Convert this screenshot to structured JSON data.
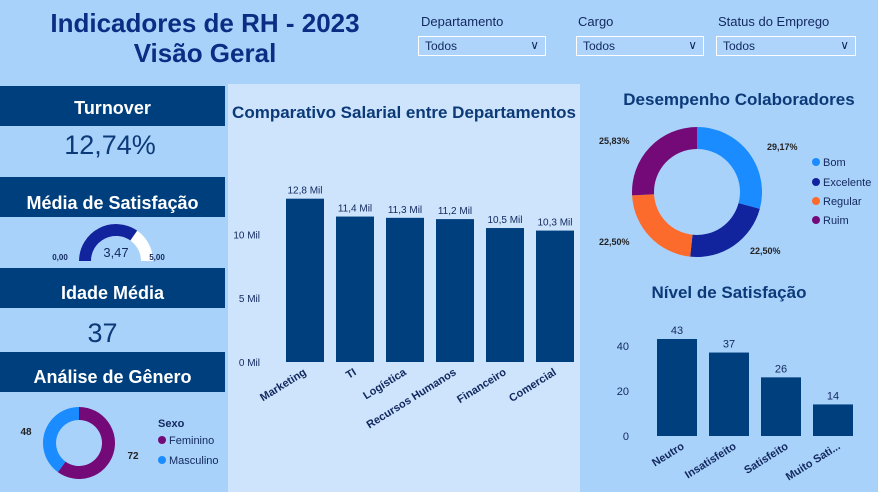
{
  "header": {
    "title_line1": "Indicadores de RH - 2023",
    "title_line2": "Visão Geral"
  },
  "filters": [
    {
      "label": "Departamento",
      "value": "Todos"
    },
    {
      "label": "Cargo",
      "value": "Todos"
    },
    {
      "label": "Status do Emprego",
      "value": "Todos"
    }
  ],
  "kpis": {
    "turnover_label": "Turnover",
    "turnover_value": "12,74%",
    "satisfaction_label": "Média de Satisfação",
    "satisfaction_value": "3,47",
    "satisfaction_min": "0,00",
    "satisfaction_max": "5,00",
    "age_label": "Idade Média",
    "age_value": "37",
    "gender_label": "Análise de Gênero"
  },
  "colors": {
    "navy": "#003f7d",
    "bom": "#1a8cff",
    "excelente": "#12239e",
    "regular": "#fc6b2c",
    "ruim": "#740a78",
    "feminino": "#740a78",
    "masculino": "#1a8cff"
  },
  "chart_data": [
    {
      "type": "pie",
      "title": "",
      "legend_title": "Sexo",
      "categories": [
        "Feminino",
        "Masculino"
      ],
      "values": [
        72,
        48
      ],
      "labels": [
        "72",
        "48"
      ]
    },
    {
      "type": "bar",
      "title": "Comparativo Salarial entre Departamentos",
      "categories": [
        "Marketing",
        "TI",
        "Logística",
        "Recursos Humanos",
        "Financeiro",
        "Comercial"
      ],
      "values": [
        12.8,
        11.4,
        11.3,
        11.2,
        10.5,
        10.3
      ],
      "data_labels": [
        "12,8 Mil",
        "11,4 Mil",
        "11,3 Mil",
        "11,2 Mil",
        "10,5 Mil",
        "10,3 Mil"
      ],
      "yticks": [
        0,
        5,
        10
      ],
      "ytick_labels": [
        "0 Mil",
        "5 Mil",
        "10 Mil"
      ],
      "ylim": [
        0,
        15
      ]
    },
    {
      "type": "pie",
      "title": "Desempenho Colaboradores",
      "categories": [
        "Bom",
        "Excelente",
        "Regular",
        "Ruim"
      ],
      "values": [
        29.17,
        22.5,
        22.5,
        25.83
      ],
      "labels": [
        "29,17%",
        "22,50%",
        "22,50%",
        "25,83%"
      ]
    },
    {
      "type": "bar",
      "title": "Nível de Satisfação",
      "categories": [
        "Neutro",
        "Insatisfeito",
        "Satisfeito",
        "Muito Sati..."
      ],
      "values": [
        43,
        37,
        26,
        14
      ],
      "data_labels": [
        "43",
        "37",
        "26",
        "14"
      ],
      "yticks": [
        0,
        20,
        40
      ],
      "ytick_labels": [
        "0",
        "20",
        "40"
      ],
      "ylim": [
        0,
        50
      ]
    }
  ]
}
